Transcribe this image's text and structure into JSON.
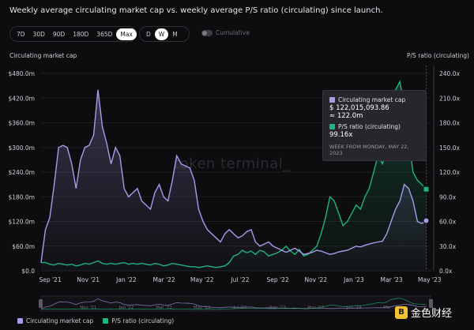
{
  "title": "Weekly average circulating market cap vs. weekly average P/S ratio (circulating) since launch.",
  "range_buttons": [
    "7D",
    "30D",
    "90D",
    "180D",
    "365D",
    "Max"
  ],
  "range_selected": "Max",
  "granularity_buttons": [
    "D",
    "W",
    "M"
  ],
  "granularity_selected": "W",
  "cumulative_label": "Cumulative",
  "watermark": "token terminal_",
  "tooltip": {
    "series1_label": "Circulating market cap",
    "series1_value": "$ 122,015,093.86",
    "series1_sub": "≈ 122.0m",
    "series2_label": "P/S ratio (circulating)",
    "series2_value": "99.16x",
    "footer": "WEEK FROM MONDAY, MAY 22, 2023"
  },
  "legend": [
    "Circulating market cap",
    "P/S ratio (circulating)"
  ],
  "brand": {
    "logo": "B",
    "text": "金色财经"
  },
  "colors": {
    "market_cap": "#a89bea",
    "ps_ratio": "#1fb37f",
    "background": "#0d0d0f"
  },
  "chart_data": {
    "type": "line",
    "left_axis_title": "Circulating market cap",
    "right_axis_title": "P/S ratio (circulating)",
    "left_ticks": [
      "$0.0",
      "$60.0m",
      "$120.0m",
      "$180.0m",
      "$240.0m",
      "$300.0m",
      "$360.0m",
      "$420.0m",
      "$480.0m"
    ],
    "right_ticks": [
      "0.0x",
      "30.0x",
      "60.0x",
      "90.0x",
      "120.0x",
      "150.0x",
      "180.0x",
      "210.0x",
      "240.0x"
    ],
    "x_ticks": [
      "Sep '21",
      "Nov '21",
      "Jan '22",
      "Mar '22",
      "May '22",
      "Jul '22",
      "Sep '22",
      "Nov '22",
      "Jan '23",
      "Mar '23",
      "May '23"
    ],
    "ylim_left": [
      0,
      480
    ],
    "ylim_right": [
      0,
      240
    ],
    "x_range": [
      0,
      89
    ],
    "x_tick_weeks": [
      1,
      9.7,
      18.4,
      27,
      35.7,
      44.4,
      53,
      61.7,
      70.4,
      79,
      87.7
    ],
    "series": [
      {
        "name": "Circulating market cap",
        "axis": "left",
        "unit": "$m",
        "x": [
          0,
          1,
          2,
          3,
          4,
          5,
          6,
          7,
          8,
          9,
          10,
          11,
          12,
          13,
          14,
          15,
          16,
          17,
          18,
          19,
          20,
          21,
          22,
          23,
          24,
          25,
          26,
          27,
          28,
          29,
          30,
          31,
          32,
          33,
          34,
          35,
          36,
          37,
          38,
          39,
          40,
          41,
          42,
          43,
          44,
          45,
          46,
          47,
          48,
          49,
          50,
          51,
          52,
          53,
          54,
          55,
          56,
          57,
          58,
          59,
          60,
          61,
          62,
          63,
          64,
          65,
          66,
          67,
          68,
          69,
          70,
          71,
          72,
          73,
          74,
          75,
          76,
          77,
          78,
          79,
          80,
          81,
          82,
          83,
          84,
          85,
          86,
          87,
          88
        ],
        "values": [
          20,
          100,
          130,
          210,
          300,
          305,
          300,
          260,
          200,
          270,
          300,
          305,
          330,
          440,
          350,
          310,
          260,
          300,
          280,
          200,
          180,
          190,
          200,
          170,
          160,
          150,
          190,
          210,
          180,
          170,
          220,
          280,
          260,
          255,
          250,
          220,
          150,
          120,
          100,
          90,
          80,
          70,
          90,
          100,
          90,
          80,
          85,
          95,
          100,
          70,
          60,
          65,
          70,
          60,
          55,
          50,
          45,
          50,
          55,
          48,
          40,
          42,
          45,
          50,
          48,
          44,
          40,
          42,
          46,
          48,
          50,
          55,
          60,
          58,
          62,
          65,
          68,
          70,
          72,
          90,
          120,
          150,
          170,
          210,
          200,
          170,
          120,
          115,
          122
        ]
      },
      {
        "name": "P/S ratio (circulating)",
        "axis": "right",
        "unit": "x",
        "x": [
          0,
          1,
          2,
          3,
          4,
          5,
          6,
          7,
          8,
          9,
          10,
          11,
          12,
          13,
          14,
          15,
          16,
          17,
          18,
          19,
          20,
          21,
          22,
          23,
          24,
          25,
          26,
          27,
          28,
          29,
          30,
          31,
          32,
          33,
          34,
          35,
          36,
          37,
          38,
          39,
          40,
          41,
          42,
          43,
          44,
          45,
          46,
          47,
          48,
          49,
          50,
          51,
          52,
          53,
          54,
          55,
          56,
          57,
          58,
          59,
          60,
          61,
          62,
          63,
          64,
          65,
          66,
          67,
          68,
          69,
          70,
          71,
          72,
          73,
          74,
          75,
          76,
          77,
          78,
          79,
          80,
          81,
          82,
          83,
          84,
          85,
          86,
          87,
          88
        ],
        "values": [
          10,
          10,
          8,
          7,
          9,
          8,
          7,
          8,
          6,
          7,
          9,
          8,
          10,
          12,
          9,
          8,
          9,
          8,
          9,
          10,
          8,
          9,
          8,
          9,
          8,
          7,
          9,
          8,
          6,
          7,
          9,
          8,
          7,
          6,
          5,
          5,
          4,
          5,
          6,
          5,
          4,
          5,
          6,
          10,
          18,
          20,
          25,
          22,
          24,
          20,
          25,
          23,
          18,
          20,
          22,
          25,
          30,
          24,
          20,
          26,
          18,
          20,
          25,
          30,
          45,
          65,
          90,
          85,
          70,
          55,
          60,
          70,
          80,
          75,
          90,
          100,
          120,
          140,
          130,
          150,
          200,
          220,
          230,
          200,
          160,
          120,
          110,
          105,
          99
        ]
      }
    ],
    "highlight": {
      "x": 88,
      "market_cap": 122.0,
      "ps_ratio": 99.16
    }
  }
}
